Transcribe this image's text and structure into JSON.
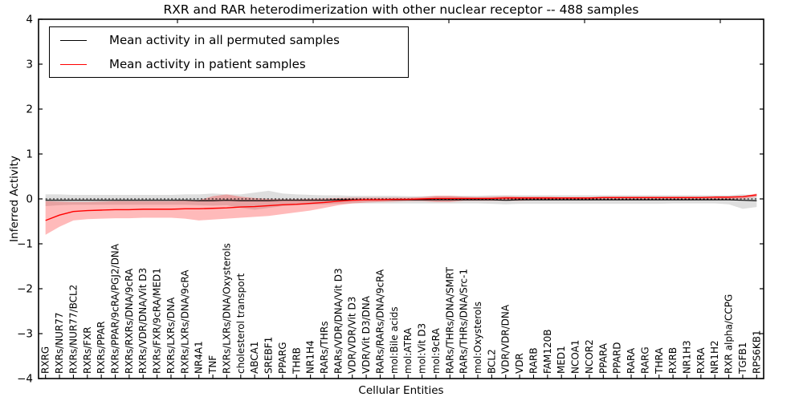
{
  "figure": {
    "title": "RXR and RAR heterodimerization with other nuclear receptor -- 488 samples",
    "xlabel": "Cellular Entities",
    "ylabel": "Inferred Activity"
  },
  "colors": {
    "permuted_line": "#000000",
    "patient_line": "#ff0000",
    "permuted_band": "rgba(0,0,0,0.13)",
    "patient_band": "rgba(255,0,0,0.27)",
    "axis": "#000000"
  },
  "chart_data": {
    "type": "line",
    "title": "RXR and RAR heterodimerization with other nuclear receptor -- 488 samples",
    "xlabel": "Cellular Entities",
    "ylabel": "Inferred Activity",
    "ylim": [
      -4,
      4
    ],
    "yticks": [
      4,
      3,
      2,
      1,
      0,
      -1,
      -2,
      -3,
      -4
    ],
    "grid": false,
    "legend_position": "upper left",
    "x_tick_rotation": 90,
    "categories": [
      "RXRG",
      "RXRs/NUR77",
      "RXRs/NUR77/BCL2",
      "RXRs/FXR",
      "RXRs/PPAR",
      "RXRs/PPAR/9cRA/PGJ2/DNA",
      "RXRs/RXRs/DNA/9cRA",
      "RXRs/VDR/DNA/Vit D3",
      "RXRs/FXR/9cRA/MED1",
      "RXRs/LXRs/DNA",
      "RXRs/LXRs/DNA/9cRA",
      "NR4A1",
      "TNF",
      "RXRs/LXRs/DNA/Oxysterols",
      "cholesterol transport",
      "ABCA1",
      "SREBF1",
      "PPARG",
      "THRB",
      "NR1H4",
      "RARs/THRs",
      "RARs/VDR/DNA/Vit D3",
      "VDR/VDR/Vit D3",
      "VDR/Vit D3/DNA",
      "RARs/RARs/DNA/9cRA",
      "mol:Bile acids",
      "mol:ATRA",
      "mol:Vit D3",
      "mol:9cRA",
      "RARs/THRs/DNA/SMRT",
      "RARs/THRs/DNA/Src-1",
      "mol:Oxysterols",
      "BCL2",
      "VDR/VDR/DNA",
      "VDR",
      "RARB",
      "FAM120B",
      "MED1",
      "NCOA1",
      "NCOR2",
      "PPARA",
      "PPARD",
      "RARA",
      "RARG",
      "THRA",
      "RXRB",
      "NR1H3",
      "RXRA",
      "NR1H2",
      "RXR alpha/CCPG",
      "TGFB1",
      "RPS6KB1"
    ],
    "series": [
      {
        "name": "Mean activity in all permuted samples",
        "color": "#000000",
        "style": "solid",
        "values": [
          -0.03,
          -0.03,
          -0.03,
          -0.03,
          -0.03,
          -0.03,
          -0.03,
          -0.03,
          -0.03,
          -0.03,
          -0.03,
          -0.04,
          -0.04,
          -0.03,
          -0.04,
          -0.04,
          -0.04,
          -0.03,
          -0.03,
          -0.03,
          -0.03,
          -0.02,
          -0.02,
          -0.02,
          -0.02,
          -0.02,
          -0.02,
          -0.02,
          -0.02,
          -0.02,
          -0.02,
          -0.02,
          -0.02,
          -0.03,
          -0.02,
          -0.02,
          -0.02,
          -0.02,
          -0.02,
          -0.02,
          -0.02,
          -0.02,
          -0.02,
          -0.02,
          -0.02,
          -0.02,
          -0.02,
          -0.02,
          -0.02,
          -0.02,
          -0.03,
          -0.04
        ]
      },
      {
        "name": "Mean activity in patient samples",
        "color": "#ff0000",
        "style": "solid",
        "values": [
          -0.48,
          -0.36,
          -0.28,
          -0.26,
          -0.25,
          -0.24,
          -0.24,
          -0.23,
          -0.23,
          -0.23,
          -0.22,
          -0.22,
          -0.21,
          -0.2,
          -0.18,
          -0.17,
          -0.15,
          -0.13,
          -0.12,
          -0.1,
          -0.08,
          -0.05,
          -0.03,
          -0.02,
          -0.02,
          -0.01,
          -0.01,
          0.0,
          0.01,
          0.01,
          0.01,
          0.01,
          0.01,
          0.02,
          0.02,
          0.02,
          0.02,
          0.02,
          0.02,
          0.02,
          0.03,
          0.03,
          0.03,
          0.03,
          0.03,
          0.03,
          0.03,
          0.03,
          0.04,
          0.04,
          0.05,
          0.09
        ]
      }
    ],
    "bands": [
      {
        "name": "permuted samples range",
        "color": "rgba(0,0,0,0.13)",
        "upper": [
          0.1,
          0.1,
          0.09,
          0.09,
          0.09,
          0.09,
          0.09,
          0.09,
          0.09,
          0.09,
          0.1,
          0.1,
          0.12,
          0.1,
          0.1,
          0.14,
          0.18,
          0.12,
          0.1,
          0.09,
          0.08,
          0.08,
          0.07,
          0.07,
          0.07,
          0.07,
          0.06,
          0.06,
          0.07,
          0.07,
          0.07,
          0.07,
          0.08,
          0.08,
          0.08,
          0.08,
          0.08,
          0.08,
          0.08,
          0.08,
          0.08,
          0.08,
          0.08,
          0.08,
          0.08,
          0.08,
          0.08,
          0.08,
          0.08,
          0.08,
          0.1,
          0.08
        ],
        "lower": [
          -0.16,
          -0.14,
          -0.13,
          -0.13,
          -0.13,
          -0.13,
          -0.13,
          -0.13,
          -0.13,
          -0.13,
          -0.13,
          -0.14,
          -0.15,
          -0.14,
          -0.2,
          -0.24,
          -0.2,
          -0.16,
          -0.14,
          -0.13,
          -0.12,
          -0.11,
          -0.1,
          -0.1,
          -0.1,
          -0.1,
          -0.1,
          -0.1,
          -0.1,
          -0.1,
          -0.1,
          -0.1,
          -0.11,
          -0.12,
          -0.11,
          -0.11,
          -0.11,
          -0.11,
          -0.11,
          -0.11,
          -0.11,
          -0.11,
          -0.11,
          -0.11,
          -0.11,
          -0.1,
          -0.1,
          -0.1,
          -0.1,
          -0.12,
          -0.22,
          -0.18
        ]
      },
      {
        "name": "patient samples range",
        "color": "rgba(255,0,0,0.27)",
        "upper": [
          -0.05,
          -0.06,
          -0.07,
          -0.07,
          -0.06,
          -0.05,
          -0.05,
          -0.05,
          -0.05,
          -0.05,
          -0.04,
          -0.03,
          0.06,
          0.1,
          0.05,
          0.02,
          0.0,
          -0.01,
          -0.01,
          0.0,
          0.01,
          0.02,
          0.03,
          0.03,
          0.03,
          0.03,
          0.03,
          0.04,
          0.07,
          0.07,
          0.05,
          0.04,
          0.05,
          0.06,
          0.05,
          0.05,
          0.05,
          0.04,
          0.04,
          0.04,
          0.05,
          0.05,
          0.05,
          0.05,
          0.05,
          0.05,
          0.05,
          0.05,
          0.05,
          0.05,
          0.06,
          0.12
        ],
        "lower": [
          -0.8,
          -0.62,
          -0.48,
          -0.45,
          -0.44,
          -0.43,
          -0.43,
          -0.42,
          -0.42,
          -0.42,
          -0.44,
          -0.48,
          -0.46,
          -0.44,
          -0.42,
          -0.4,
          -0.38,
          -0.34,
          -0.3,
          -0.26,
          -0.2,
          -0.14,
          -0.1,
          -0.08,
          -0.07,
          -0.06,
          -0.05,
          -0.05,
          -0.07,
          -0.07,
          -0.04,
          -0.04,
          -0.04,
          -0.04,
          -0.04,
          -0.03,
          -0.03,
          -0.03,
          -0.03,
          -0.03,
          -0.02,
          -0.02,
          -0.02,
          -0.02,
          -0.02,
          -0.02,
          -0.02,
          -0.02,
          -0.01,
          -0.01,
          0.0,
          0.05
        ]
      }
    ],
    "zero_line": {
      "y": 0,
      "style": "dashed",
      "color": "#000000"
    }
  }
}
